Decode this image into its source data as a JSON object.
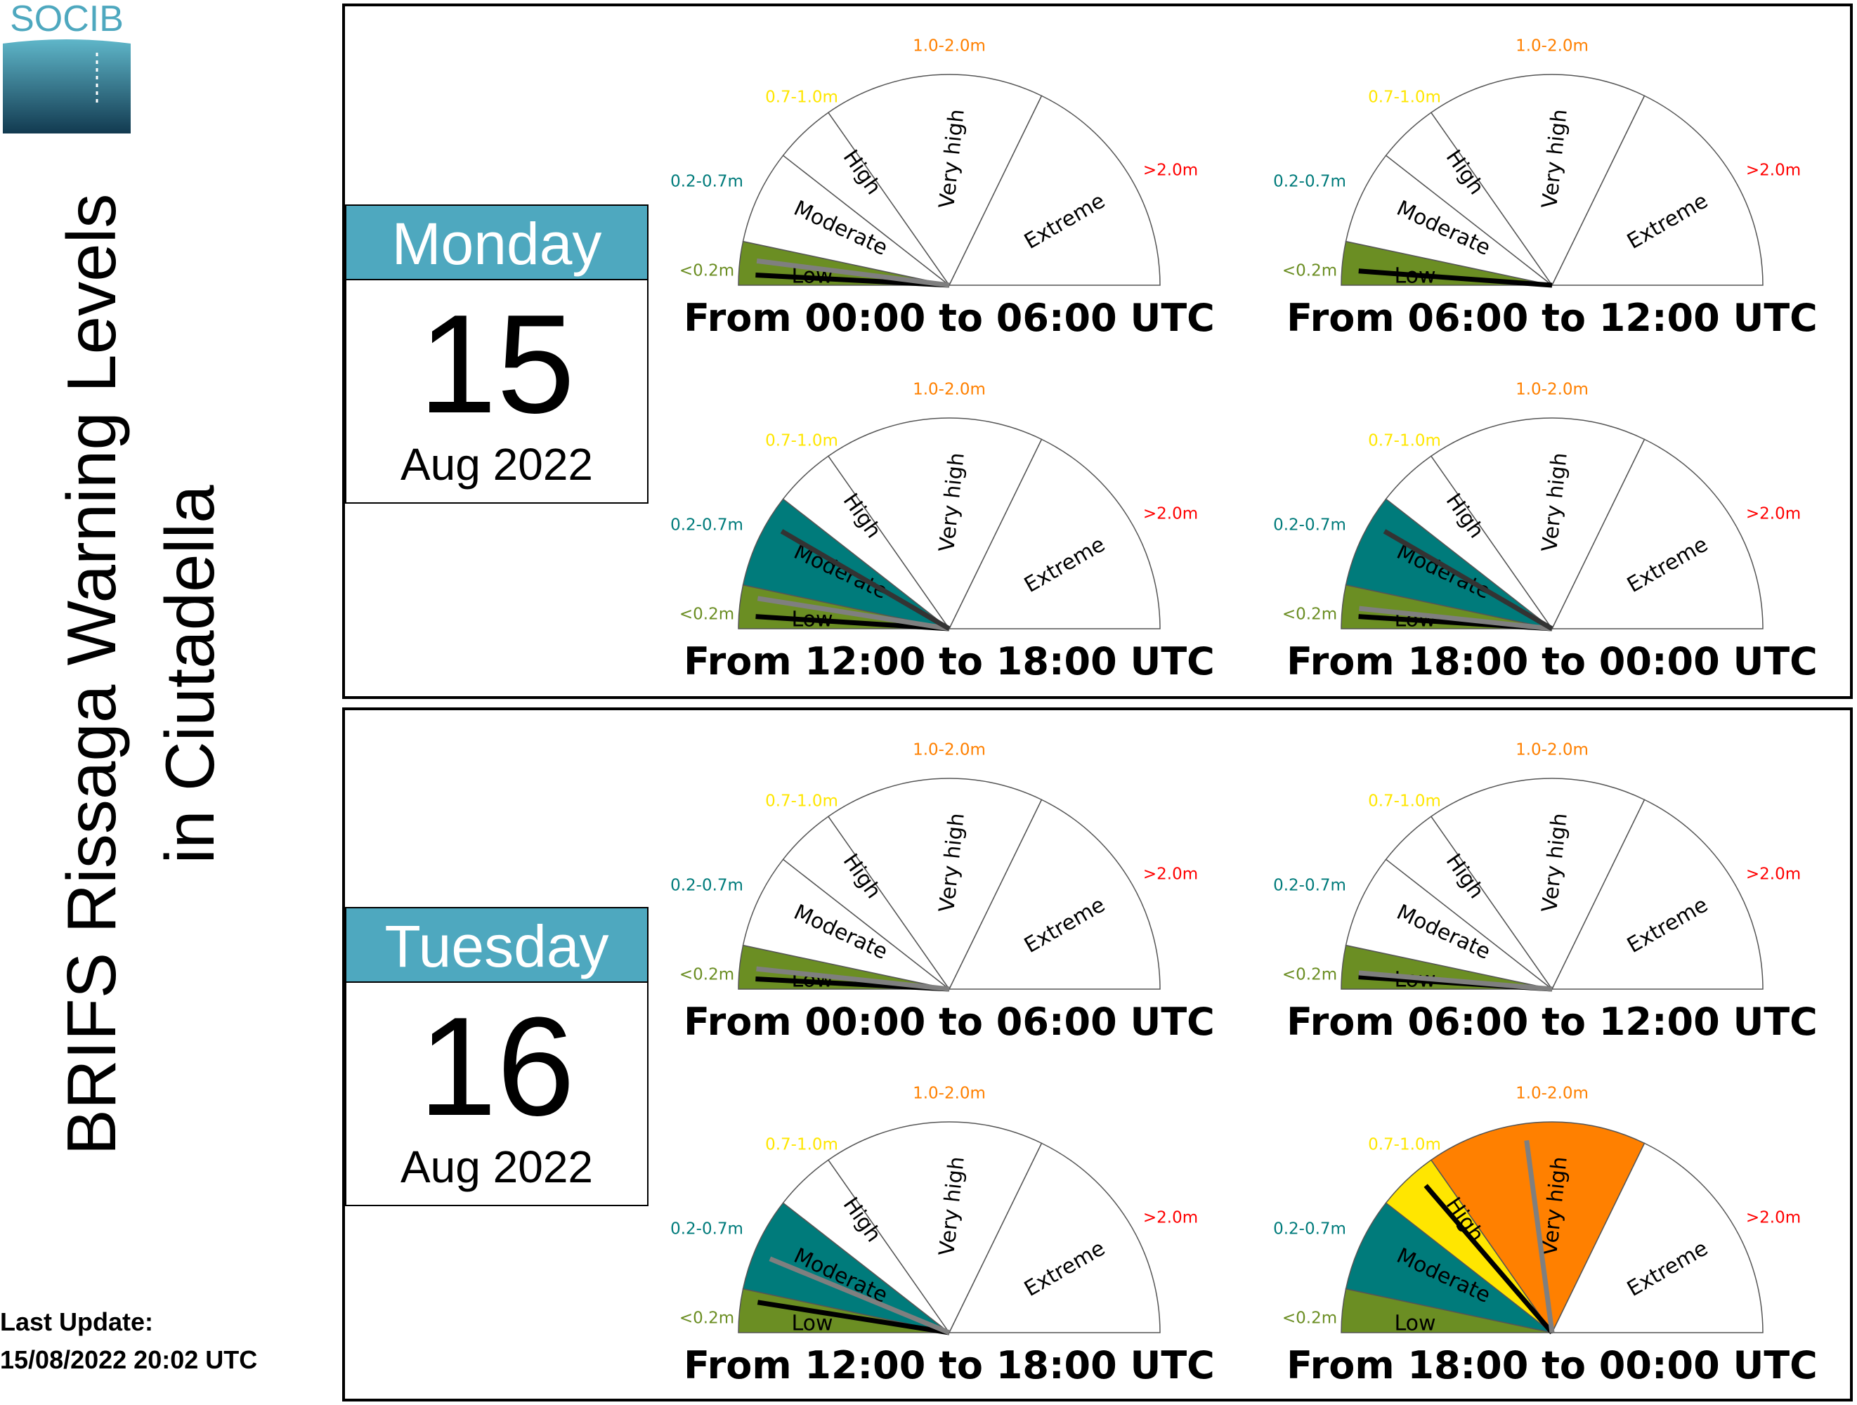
{
  "brand": {
    "name": "SOCIB"
  },
  "title": {
    "line1": "BRIFS Rissaga Warning Levels",
    "line2": "in Ciutadella"
  },
  "last_update": {
    "label": "Last Update:",
    "value": "15/08/2022 20:02 UTC"
  },
  "colors": {
    "calendar_header": "#4ea8bf",
    "levels": {
      "low": "#6b8e23",
      "moderate": "#007b7b",
      "high": "#ffe600",
      "very_high": "#ff8000",
      "extreme": "#ff0000"
    },
    "needle_dark": "#000000",
    "needle_gray": "#7f7f7f"
  },
  "gauge_labels": {
    "categories": [
      "Low",
      "Moderate",
      "High",
      "Very high",
      "Extreme"
    ],
    "thresholds": [
      "<0.2m",
      "0.2-0.7m",
      "0.7-1.0m",
      "1.0-2.0m",
      ">2.0m"
    ]
  },
  "chart_data": {
    "type": "gauge",
    "days": [
      {
        "weekday": "Monday",
        "day": "15",
        "month_year": "Aug 2022",
        "periods": [
          {
            "label": "From 00:00 to 06:00 UTC",
            "level": "Low",
            "needles_m": [
              0.05,
              0.12
            ]
          },
          {
            "label": "From 06:00 to 12:00 UTC",
            "level": "Low",
            "needles_m": [
              0.07
            ]
          },
          {
            "label": "From 12:00 to 18:00 UTC",
            "level": "Moderate",
            "needles_m": [
              0.06,
              0.15,
              0.55
            ]
          },
          {
            "label": "From 18:00 to 00:00 UTC",
            "level": "Moderate",
            "needles_m": [
              0.06,
              0.1,
              0.55
            ]
          }
        ]
      },
      {
        "weekday": "Tuesday",
        "day": "16",
        "month_year": "Aug 2022",
        "periods": [
          {
            "label": "From 00:00 to 06:00 UTC",
            "level": "Low",
            "needles_m": [
              0.05,
              0.1
            ]
          },
          {
            "label": "From 06:00 to 12:00 UTC",
            "level": "Low",
            "needles_m": [
              0.06,
              0.08
            ]
          },
          {
            "label": "From 12:00 to 18:00 UTC",
            "level": "Moderate",
            "needles_m": [
              0.15,
              0.4
            ]
          },
          {
            "label": "From 18:00 to 00:00 UTC",
            "level": "Very high",
            "needles_m": [
              0.9,
              1.45
            ]
          }
        ]
      }
    ]
  }
}
